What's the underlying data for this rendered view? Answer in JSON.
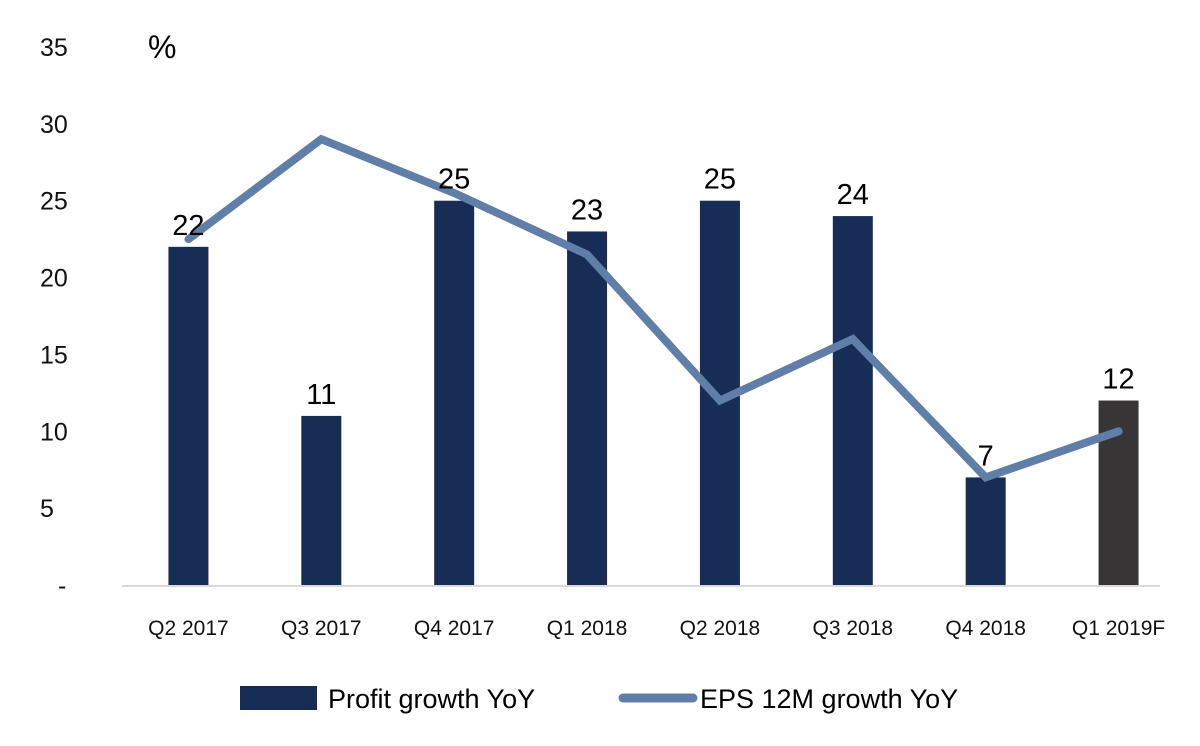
{
  "chart_data": {
    "type": "bar",
    "title": "",
    "unit_label": "%",
    "xlabel": "",
    "ylabel": "%",
    "ylim": [
      0,
      35
    ],
    "yticks": [
      {
        "value": 0,
        "label": "-"
      },
      {
        "value": 5,
        "label": "5"
      },
      {
        "value": 10,
        "label": "10"
      },
      {
        "value": 15,
        "label": "15"
      },
      {
        "value": 20,
        "label": "20"
      },
      {
        "value": 25,
        "label": "25"
      },
      {
        "value": 30,
        "label": "30"
      },
      {
        "value": 35,
        "label": "35"
      }
    ],
    "grid": false,
    "categories": [
      "Q2 2017",
      "Q3 2017",
      "Q4 2017",
      "Q1 2018",
      "Q2 2018",
      "Q3 2018",
      "Q4 2018",
      "Q1 2019F"
    ],
    "series": [
      {
        "name": "Profit growth YoY",
        "type": "bar",
        "color": "#182d55",
        "forecast_color": "#383537",
        "forecast_index": 7,
        "values": [
          22,
          11,
          25,
          23,
          25,
          24,
          7,
          12
        ],
        "data_labels": [
          "22",
          "11",
          "25",
          "23",
          "25",
          "24",
          "7",
          "12"
        ]
      },
      {
        "name": "EPS 12M growth YoY",
        "type": "line",
        "color": "#5f7fa8",
        "values": [
          22.5,
          29,
          25.5,
          21.5,
          12,
          16,
          7,
          10
        ]
      }
    ],
    "legend": {
      "position": "bottom",
      "entries": [
        "Profit growth YoY",
        "EPS 12M growth YoY"
      ]
    }
  }
}
